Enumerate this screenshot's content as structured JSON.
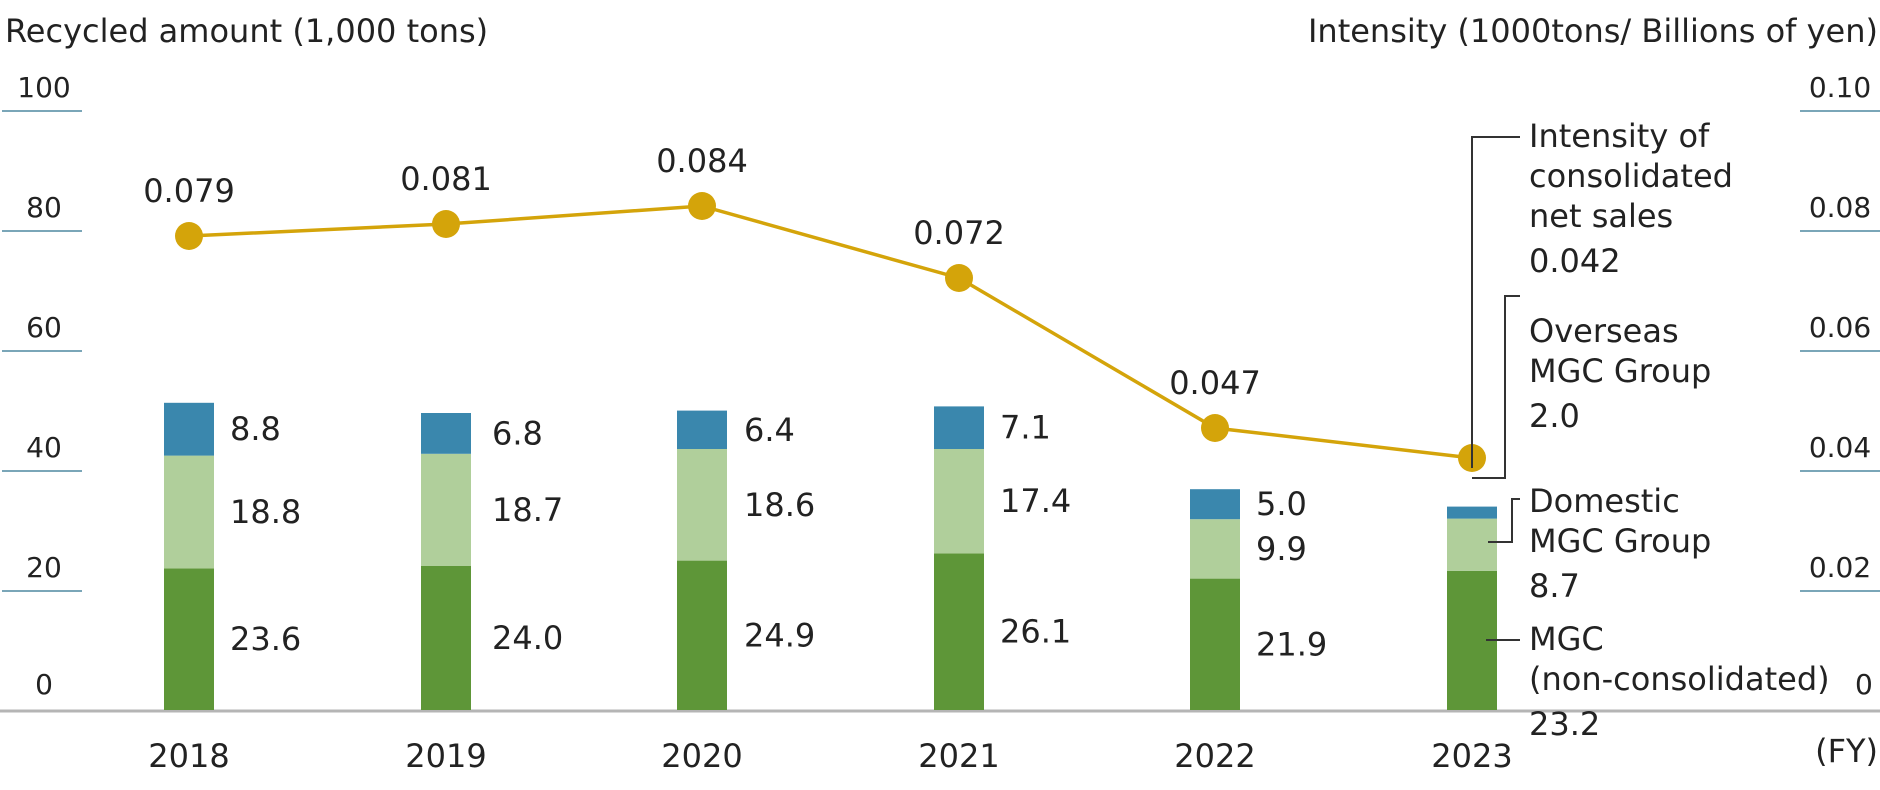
{
  "chart_data": {
    "type": "bar",
    "subtype": "stacked bar with line overlay",
    "categories": [
      "2018",
      "2019",
      "2020",
      "2021",
      "2022",
      "2023"
    ],
    "left_axis": {
      "label": "Recycled amount (1,000 tons)",
      "ylim": [
        0,
        100
      ],
      "ticks": [
        "0",
        "20",
        "40",
        "60",
        "80",
        "100"
      ]
    },
    "right_axis": {
      "label": "Intensity (1000tons/ Billions of yen)",
      "ylim": [
        0,
        0.1
      ],
      "ticks": [
        "0",
        "0.02",
        "0.04",
        "0.06",
        "0.08",
        "0.10"
      ]
    },
    "x_unit_label": "(FY)",
    "series": [
      {
        "name": "MGC (non-consolidated)",
        "color": "#5e9638",
        "values": [
          23.6,
          24.0,
          24.9,
          26.1,
          21.9,
          23.2
        ],
        "labels": [
          "23.6",
          "24.0",
          "24.9",
          "26.1",
          "21.9",
          "23.2"
        ]
      },
      {
        "name": "Domestic MGC Group",
        "color": "#b0cf9b",
        "values": [
          18.8,
          18.7,
          18.6,
          17.4,
          9.9,
          8.7
        ],
        "labels": [
          "18.8",
          "18.7",
          "18.6",
          "17.4",
          "9.9",
          "8.7"
        ]
      },
      {
        "name": "Overseas MGC Group",
        "color": "#3a87ad",
        "values": [
          8.8,
          6.8,
          6.4,
          7.1,
          5.0,
          2.0
        ],
        "labels": [
          "8.8",
          "6.8",
          "6.4",
          "7.1",
          "5.0",
          "2.0"
        ]
      }
    ],
    "line": {
      "name": "Intensity of consolidated net sales",
      "color": "#d4a40a",
      "values": [
        0.079,
        0.081,
        0.084,
        0.072,
        0.047,
        0.042
      ],
      "labels": [
        "0.079",
        "0.081",
        "0.084",
        "0.072",
        "0.047",
        "0.042"
      ]
    },
    "legend": [
      {
        "lines": [
          "Intensity of",
          "consolidated",
          "net sales"
        ],
        "value": "0.042"
      },
      {
        "lines": [
          "Overseas",
          "MGC Group"
        ],
        "value": "2.0"
      },
      {
        "lines": [
          "Domestic",
          "MGC Group"
        ],
        "value": "8.7"
      },
      {
        "lines": [
          "MGC",
          "(non-consolidated)"
        ],
        "value": "23.2"
      }
    ]
  }
}
